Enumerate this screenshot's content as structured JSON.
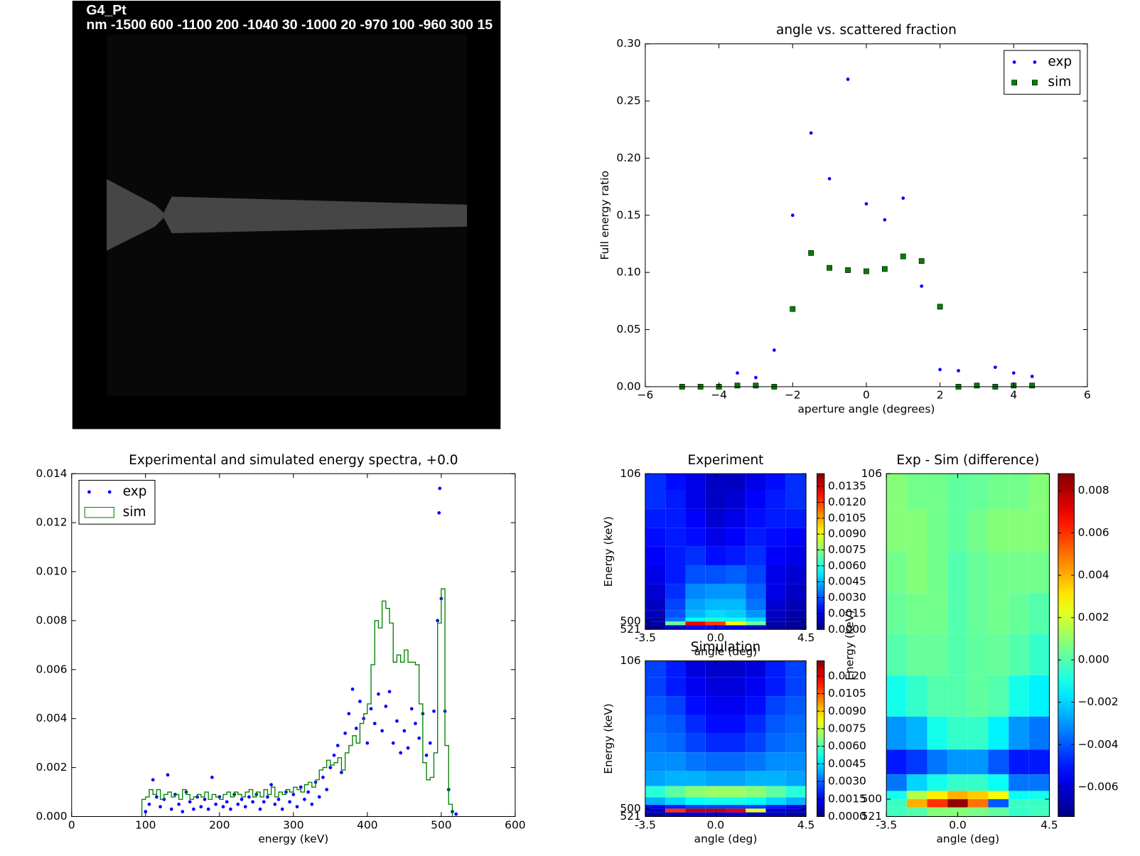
{
  "chart_data": [
    {
      "type": "image",
      "title": "G4_Pt",
      "subtitle": "nm -1500 600 -1100 200 -1040 30 -1000 20 -970 100 -960 300 15"
    },
    {
      "type": "scatter",
      "title": "angle vs. scattered fraction",
      "x_label": "aperture angle (degrees)",
      "y_label": "Full energy ratio",
      "xlim": [
        -6,
        6
      ],
      "xticks": [
        {
          "value": -6,
          "label": "−6"
        },
        {
          "value": -4,
          "label": "−4"
        },
        {
          "value": -2,
          "label": "−2"
        },
        0,
        2,
        4,
        6
      ],
      "ylim": [
        0,
        0.3
      ],
      "yticks": [
        {
          "value": 0,
          "label": "0.00"
        },
        0.05,
        {
          "value": 0.1,
          "label": "0.10"
        },
        0.15,
        {
          "value": 0.2,
          "label": "0.20"
        },
        0.25,
        {
          "value": 0.3,
          "label": "0.30"
        }
      ],
      "legend": "upper right",
      "series": [
        {
          "name": "exp",
          "color": "#0000ff",
          "marker": "dot",
          "x": [
            -5,
            -4.5,
            -4,
            -3.5,
            -3,
            -2.5,
            -2,
            -1.5,
            -1,
            -0.5,
            0,
            0.5,
            1,
            1.5,
            2,
            2.5,
            3,
            3.5,
            4,
            4.5
          ],
          "values": [
            0,
            0,
            0,
            0.012,
            0.008,
            0.032,
            0.15,
            0.222,
            0.182,
            0.269,
            0.16,
            0.146,
            0.165,
            0.088,
            0.015,
            0.014,
            0.002,
            0.017,
            0.012,
            0.009
          ]
        },
        {
          "name": "sim",
          "color": "#008000",
          "marker": "square",
          "x": [
            -5,
            -4.5,
            -4,
            -3.5,
            -3,
            -2.5,
            -2,
            -1.5,
            -1,
            -0.5,
            0,
            0.5,
            1,
            1.5,
            2,
            2.5,
            3,
            3.5,
            4,
            4.5
          ],
          "values": [
            0,
            0,
            0,
            0.001,
            0.001,
            0,
            0.068,
            0.117,
            0.104,
            0.102,
            0.101,
            0.103,
            0.114,
            0.11,
            0.07,
            0,
            0.001,
            0,
            0.001,
            0.001
          ]
        }
      ]
    },
    {
      "type": "spectrum",
      "title": "Experimental and simulated energy spectra, +0.0",
      "x_label": "energy (keV)",
      "xlim": [
        0,
        600
      ],
      "xticks": [
        0,
        100,
        200,
        300,
        400,
        500,
        600
      ],
      "ylim": [
        0,
        0.014
      ],
      "yticks": [
        {
          "value": 0,
          "label": "0.000"
        },
        0.002,
        0.004,
        0.006,
        0.008,
        {
          "value": 0.01,
          "label": "0.010"
        },
        0.012,
        0.014
      ],
      "legend": "upper left",
      "series": [
        {
          "name": "exp",
          "color": "#0000ff",
          "kind": "scatter",
          "x": [
            100,
            105,
            110,
            115,
            120,
            125,
            130,
            135,
            140,
            145,
            150,
            155,
            160,
            165,
            170,
            175,
            180,
            185,
            190,
            195,
            200,
            205,
            210,
            215,
            220,
            225,
            230,
            235,
            240,
            245,
            250,
            255,
            260,
            265,
            270,
            275,
            280,
            285,
            290,
            295,
            300,
            305,
            310,
            315,
            320,
            325,
            330,
            335,
            340,
            345,
            350,
            355,
            360,
            365,
            370,
            375,
            380,
            385,
            390,
            395,
            400,
            405,
            410,
            415,
            420,
            425,
            430,
            435,
            440,
            445,
            450,
            455,
            460,
            465,
            470,
            475,
            480,
            485,
            490,
            495,
            497,
            498,
            500,
            505,
            510,
            515,
            520
          ],
          "values": [
            0.0002,
            0.0005,
            0.0015,
            0.0008,
            0.0004,
            0.0007,
            0.0017,
            0.0003,
            0.0009,
            0.0005,
            0.0002,
            0.001,
            0.0006,
            0.0003,
            0.0008,
            0.0004,
            0.0007,
            0.0003,
            0.0016,
            0.0005,
            0.0008,
            0.0004,
            0.0006,
            0.0003,
            0.0009,
            0.0005,
            0.0007,
            0.0004,
            0.0008,
            0.0006,
            0.0009,
            0.0003,
            0.0006,
            0.0008,
            0.0013,
            0.0005,
            0.0007,
            0.0003,
            0.001,
            0.0006,
            0.0009,
            0.0004,
            0.0012,
            0.0007,
            0.001,
            0.0005,
            0.0014,
            0.0008,
            0.0016,
            0.0011,
            0.002,
            0.0025,
            0.0029,
            0.0018,
            0.0034,
            0.0042,
            0.0052,
            0.0036,
            0.0047,
            0.004,
            0.003,
            0.0044,
            0.0038,
            0.005,
            0.0035,
            0.0045,
            0.0051,
            0.003,
            0.0039,
            0.0026,
            0.0035,
            0.0028,
            0.0044,
            0.0038,
            0.0032,
            0.0042,
            0.0025,
            0.003,
            0.0043,
            0.008,
            0.0124,
            0.0134,
            0.0089,
            0.0043,
            0.0011,
            0.0002,
            0.0001
          ]
        },
        {
          "name": "sim",
          "color": "#008000",
          "kind": "step",
          "bins": [
            95,
            100,
            105,
            110,
            115,
            120,
            125,
            130,
            135,
            140,
            145,
            150,
            155,
            160,
            165,
            170,
            175,
            180,
            185,
            190,
            195,
            200,
            205,
            210,
            215,
            220,
            225,
            230,
            235,
            240,
            245,
            250,
            255,
            260,
            265,
            270,
            275,
            280,
            285,
            290,
            295,
            300,
            305,
            310,
            315,
            320,
            325,
            330,
            335,
            340,
            345,
            350,
            355,
            360,
            365,
            370,
            375,
            380,
            385,
            390,
            395,
            400,
            405,
            410,
            415,
            420,
            425,
            430,
            435,
            440,
            445,
            450,
            455,
            460,
            465,
            470,
            475,
            480,
            485,
            490,
            495,
            500,
            505,
            510,
            515
          ],
          "values": [
            0.0007,
            0.0008,
            0.0011,
            0.0009,
            0.0011,
            0.0007,
            0.0009,
            0.001,
            0.0008,
            0.0009,
            0.0007,
            0.0011,
            0.0009,
            0.0007,
            0.0008,
            0.0009,
            0.0008,
            0.001,
            0.0007,
            0.0009,
            0.0008,
            0.0007,
            0.0009,
            0.001,
            0.0008,
            0.001,
            0.0009,
            0.0008,
            0.001,
            0.0011,
            0.0008,
            0.001,
            0.0008,
            0.0011,
            0.0009,
            0.0012,
            0.0008,
            0.001,
            0.0009,
            0.0011,
            0.001,
            0.0012,
            0.0011,
            0.001,
            0.0013,
            0.0014,
            0.0012,
            0.0015,
            0.0019,
            0.002,
            0.0023,
            0.0021,
            0.0022,
            0.0024,
            0.0019,
            0.0026,
            0.0029,
            0.0033,
            0.003,
            0.0038,
            0.0042,
            0.0046,
            0.0062,
            0.008,
            0.0077,
            0.0088,
            0.0085,
            0.0079,
            0.0063,
            0.0066,
            0.0063,
            0.0068,
            0.0063,
            0.0063,
            0.0062,
            0.0046,
            0.0022,
            0.0015,
            0.0016,
            0.0026,
            0.0079,
            0.0093,
            0.0029,
            0.0005
          ]
        }
      ]
    },
    {
      "type": "heatmap",
      "title": "Experiment",
      "x_label": "angle (deg)",
      "y_label": "Energy (keV)",
      "cmap": "jet",
      "xlim": [
        -3.5,
        4.5
      ],
      "xticks": [
        -3.5,
        {
          "value": 0,
          "label": "0.0"
        },
        4.5
      ],
      "ylim": [
        521,
        106
      ],
      "yticks": [
        106,
        500,
        521
      ],
      "xbins": [
        -3.5,
        -2.5,
        -1.5,
        -0.5,
        0.5,
        1.5,
        2.5,
        3.5,
        4.5
      ],
      "ybins": [
        106,
        150,
        200,
        250,
        300,
        350,
        400,
        440,
        470,
        490,
        500,
        510,
        521
      ],
      "clim": [
        0,
        0.0147
      ],
      "cticks": [
        {
          "value": 0,
          "label": "0.0000"
        },
        0.0015,
        {
          "value": 0.003,
          "label": "0.0030"
        },
        0.0045,
        {
          "value": 0.006,
          "label": "0.0060"
        },
        0.0075,
        {
          "value": 0.009,
          "label": "0.0090"
        },
        0.0105,
        {
          "value": 0.012,
          "label": "0.0120"
        },
        0.0135
      ],
      "z": [
        [
          0.0025,
          0.002,
          0.0015,
          0.001,
          0.001,
          0.0015,
          0.002,
          0.0025
        ],
        [
          0.0025,
          0.0022,
          0.0015,
          0.001,
          0.0012,
          0.0018,
          0.0022,
          0.0025
        ],
        [
          0.0022,
          0.0022,
          0.0018,
          0.0012,
          0.0015,
          0.002,
          0.0022,
          0.0022
        ],
        [
          0.002,
          0.0022,
          0.002,
          0.0015,
          0.0018,
          0.0022,
          0.002,
          0.0018
        ],
        [
          0.0018,
          0.0022,
          0.0025,
          0.002,
          0.0022,
          0.0025,
          0.0018,
          0.0015
        ],
        [
          0.0015,
          0.0022,
          0.003,
          0.003,
          0.0032,
          0.0028,
          0.0015,
          0.0012
        ],
        [
          0.0012,
          0.0025,
          0.0038,
          0.004,
          0.004,
          0.0032,
          0.0015,
          0.001
        ],
        [
          0.001,
          0.0028,
          0.0042,
          0.0045,
          0.0045,
          0.0035,
          0.0012,
          0.0008
        ],
        [
          0.0008,
          0.003,
          0.0045,
          0.005,
          0.0048,
          0.004,
          0.001,
          0.0006
        ],
        [
          0.0006,
          0.0035,
          0.0055,
          0.006,
          0.0058,
          0.005,
          0.0008,
          0.0005
        ],
        [
          0.0004,
          0.007,
          0.013,
          0.012,
          0.009,
          0.007,
          0.0006,
          0.0004
        ],
        [
          0.0002,
          0.001,
          0.002,
          0.002,
          0.0018,
          0.0012,
          0.0003,
          0.0002
        ]
      ]
    },
    {
      "type": "heatmap",
      "title": "Simulation",
      "x_label": "angle (deg)",
      "y_label": "Energy (keV)",
      "cmap": "jet",
      "xlim": [
        -3.5,
        4.5
      ],
      "xticks": [
        -3.5,
        {
          "value": 0,
          "label": "0.0"
        },
        4.5
      ],
      "ylim": [
        521,
        106
      ],
      "yticks": [
        106,
        500,
        521
      ],
      "xbins": [
        -3.5,
        -2.5,
        -1.5,
        -0.5,
        0.5,
        1.5,
        2.5,
        3.5,
        4.5
      ],
      "ybins": [
        106,
        150,
        200,
        250,
        300,
        350,
        400,
        440,
        470,
        490,
        500,
        510,
        521
      ],
      "clim": [
        0,
        0.0133
      ],
      "cticks": [
        {
          "value": 0,
          "label": "0.0000"
        },
        0.0015,
        {
          "value": 0.003,
          "label": "0.0030"
        },
        0.0045,
        {
          "value": 0.006,
          "label": "0.0060"
        },
        0.0075,
        {
          "value": 0.009,
          "label": "0.0090"
        },
        0.0105,
        {
          "value": 0.012,
          "label": "0.0120"
        }
      ],
      "z": [
        [
          0.0025,
          0.002,
          0.0012,
          0.001,
          0.001,
          0.0012,
          0.002,
          0.0025
        ],
        [
          0.0025,
          0.002,
          0.0015,
          0.0012,
          0.0012,
          0.0015,
          0.002,
          0.0025
        ],
        [
          0.0028,
          0.0025,
          0.0018,
          0.0015,
          0.0015,
          0.0018,
          0.0025,
          0.0028
        ],
        [
          0.003,
          0.0028,
          0.0022,
          0.0018,
          0.0018,
          0.0022,
          0.0028,
          0.003
        ],
        [
          0.0032,
          0.003,
          0.0025,
          0.0022,
          0.0022,
          0.0025,
          0.003,
          0.0032
        ],
        [
          0.0035,
          0.0035,
          0.0032,
          0.003,
          0.003,
          0.0032,
          0.0035,
          0.0035
        ],
        [
          0.0038,
          0.004,
          0.004,
          0.0038,
          0.0038,
          0.004,
          0.004,
          0.0038
        ],
        [
          0.0055,
          0.0062,
          0.0068,
          0.007,
          0.007,
          0.0068,
          0.0062,
          0.0055
        ],
        [
          0.004,
          0.0045,
          0.005,
          0.0052,
          0.0052,
          0.005,
          0.0045,
          0.004
        ],
        [
          0.0015,
          0.002,
          0.0025,
          0.0025,
          0.0025,
          0.0025,
          0.002,
          0.0015
        ],
        [
          0.0008,
          0.011,
          0.0125,
          0.0125,
          0.012,
          0.008,
          0.001,
          0.0008
        ],
        [
          0.0005,
          0.001,
          0.0012,
          0.0012,
          0.0012,
          0.001,
          0.0008,
          0.0005
        ]
      ]
    },
    {
      "type": "heatmap",
      "title": "Exp - Sim (difference)",
      "x_label": "angle (deg)",
      "y_label": "Energy (keV)",
      "cmap": "jet",
      "xlim": [
        -3.5,
        4.5
      ],
      "xticks": [
        -3.5,
        {
          "value": 0,
          "label": "0.0"
        },
        4.5
      ],
      "ylim": [
        521,
        106
      ],
      "yticks": [
        106,
        500,
        521
      ],
      "xbins": [
        -3.5,
        -2.5,
        -1.5,
        -0.5,
        0.5,
        1.5,
        2.5,
        3.5,
        4.5
      ],
      "ybins": [
        106,
        150,
        200,
        250,
        300,
        350,
        400,
        440,
        470,
        490,
        500,
        510,
        521
      ],
      "clim": [
        -0.0074,
        0.0088
      ],
      "cticks": [
        {
          "value": -0.006,
          "label": "−0.006"
        },
        {
          "value": -0.004,
          "label": "−0.004"
        },
        {
          "value": -0.002,
          "label": "−0.002"
        },
        {
          "value": 0,
          "label": "0.000"
        },
        0.002,
        0.004,
        0.006,
        0.008
      ],
      "z": [
        [
          0.0008,
          0.0005,
          0.0005,
          0.0002,
          0.0003,
          0.0005,
          0.0005,
          0.0008
        ],
        [
          0.0008,
          0.0008,
          0.0005,
          0.0002,
          0.0005,
          0.0008,
          0.0008,
          0.0008
        ],
        [
          0.0005,
          0.0008,
          0.0005,
          0,
          0.0003,
          0.0005,
          0.0005,
          0.0005
        ],
        [
          0.0003,
          0.0005,
          0.0005,
          0,
          0.0003,
          0.0005,
          0.0003,
          0
        ],
        [
          0,
          0.0003,
          0.0003,
          0,
          0.0002,
          0.0003,
          0,
          -0.0005
        ],
        [
          -0.001,
          -0.0005,
          0,
          0,
          0.0002,
          0,
          -0.001,
          -0.0015
        ],
        [
          -0.003,
          -0.0025,
          -0.001,
          -0.0005,
          -0.0005,
          -0.0015,
          -0.003,
          -0.0035
        ],
        [
          -0.005,
          -0.0045,
          -0.0035,
          -0.003,
          -0.003,
          -0.004,
          -0.005,
          -0.005
        ],
        [
          -0.0035,
          -0.002,
          -0.001,
          -0.0005,
          -0.0005,
          -0.0012,
          -0.0035,
          -0.0035
        ],
        [
          -0.001,
          0.0015,
          0.003,
          0.004,
          0.0035,
          0.0025,
          -0.0012,
          -0.001
        ],
        [
          -0.0004,
          0.004,
          0.006,
          0.0085,
          0.005,
          -0.004,
          -0.0004,
          -0.0004
        ],
        [
          -0.0003,
          0,
          0.0008,
          0.0008,
          0.0006,
          0.0002,
          -0.0005,
          -0.0003
        ]
      ]
    }
  ]
}
